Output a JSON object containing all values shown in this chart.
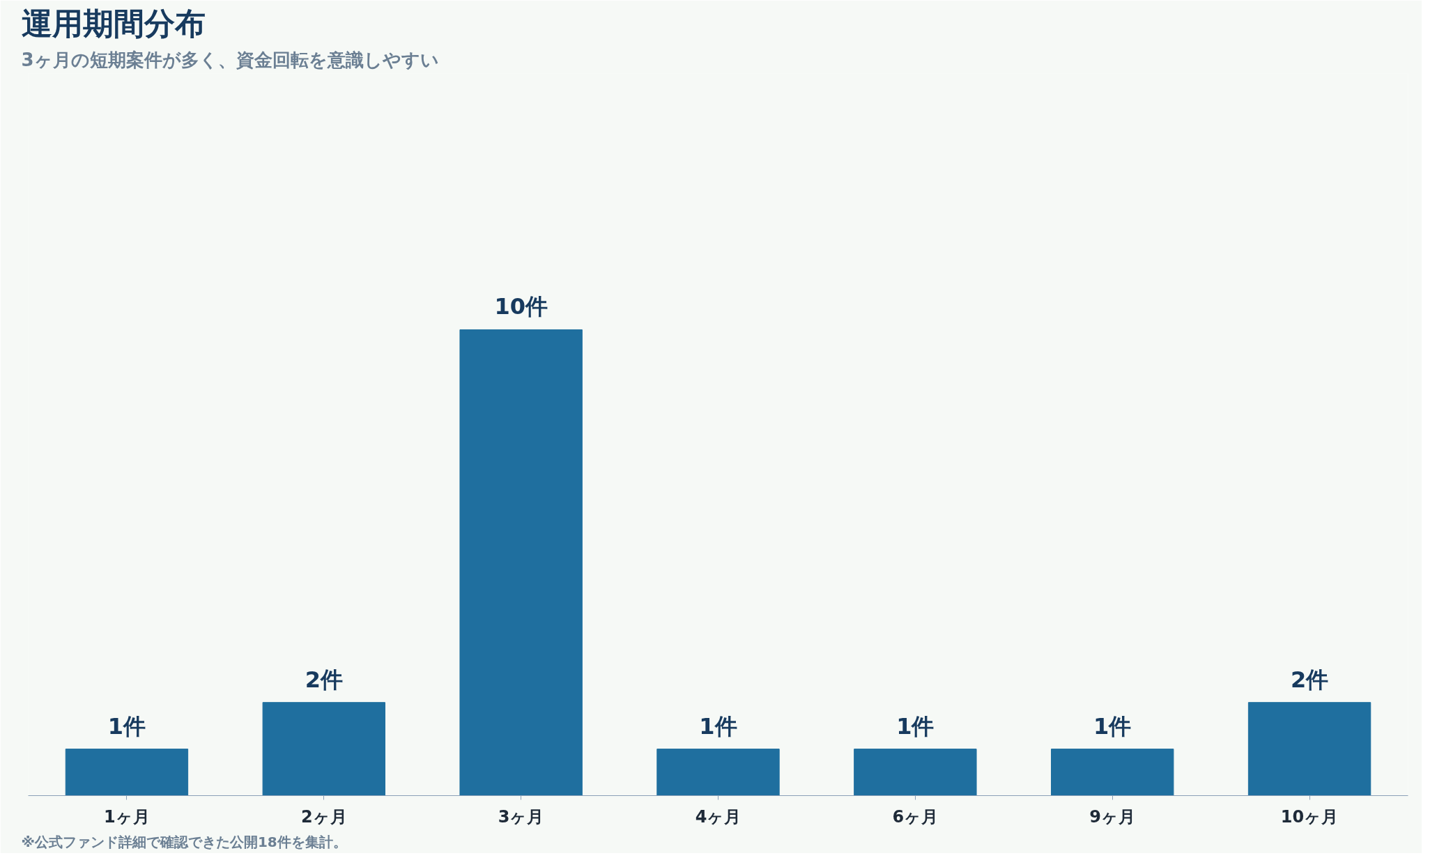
{
  "chart_data": {
    "type": "bar",
    "title": "運用期間分布",
    "subtitle": "3ヶ月の短期案件が多く、資金回転を意識しやすい",
    "categories": [
      "1ヶ月",
      "2ヶ月",
      "3ヶ月",
      "4ヶ月",
      "6ヶ月",
      "9ヶ月",
      "10ヶ月"
    ],
    "values": [
      1,
      2,
      10,
      1,
      1,
      1,
      2
    ],
    "value_labels": [
      "1件",
      "2件",
      "10件",
      "1件",
      "1件",
      "1件",
      "2件"
    ],
    "color": "#1f6f9f",
    "grid": false,
    "tick_labels": "x",
    "annotations": [
      "※公式ファンド詳細で確認できた公開18件を集計。"
    ]
  }
}
